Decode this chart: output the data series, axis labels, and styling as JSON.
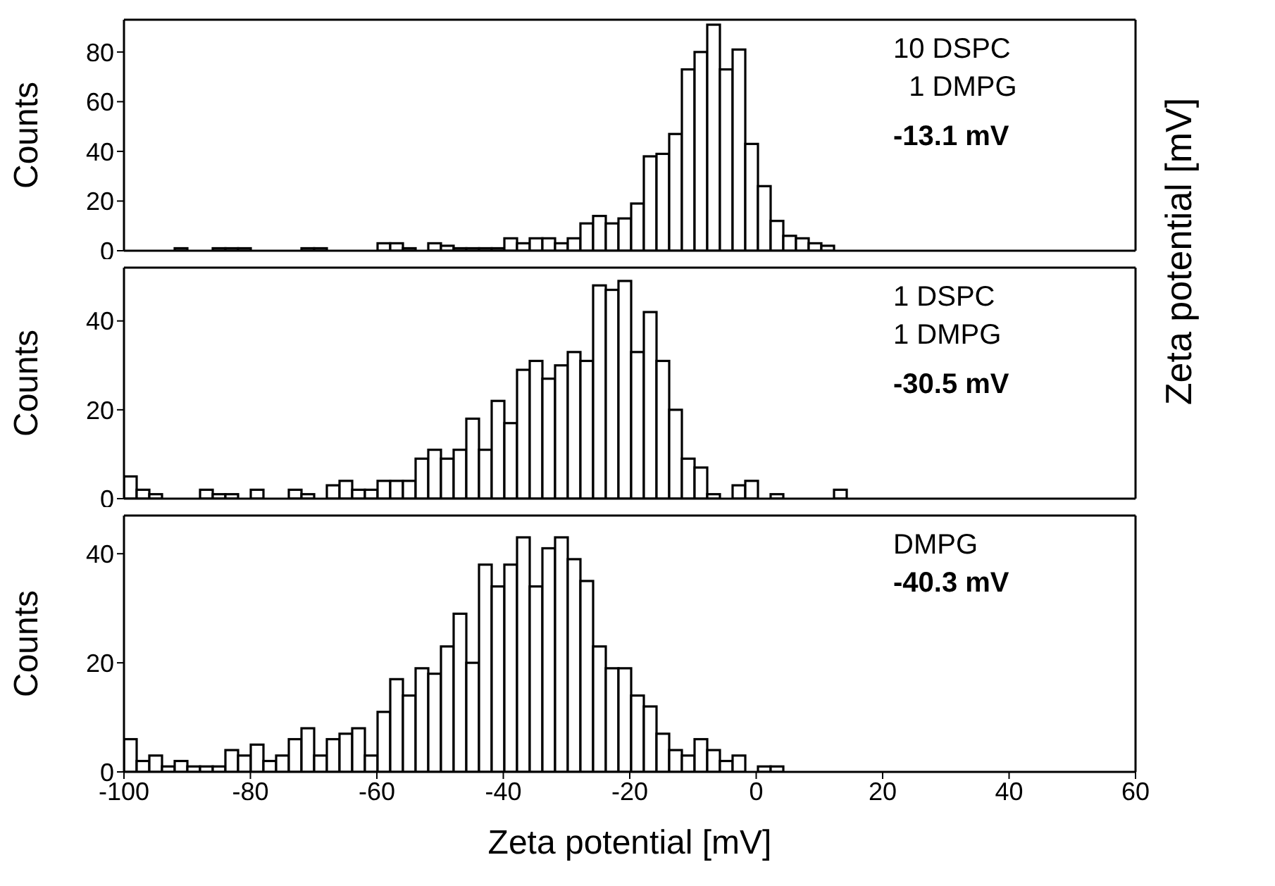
{
  "chart_data": [
    {
      "type": "histogram",
      "ylabel": "Counts",
      "y2label": "Zeta potential [mV]",
      "annotations": [
        "10 DSPC",
        "  1 DMPG",
        "-13.1 mV"
      ],
      "bins": [
        -100,
        -98,
        -96,
        -94,
        -92,
        -90,
        -88,
        -86,
        -84,
        -82,
        -80,
        -78,
        -76,
        -74,
        -72,
        -70,
        -68,
        -66,
        -64,
        -62,
        -60,
        -58,
        -56,
        -54,
        -52,
        -50,
        -48,
        -46,
        -44,
        -42,
        -40,
        -38,
        -36,
        -34,
        -32,
        -30,
        -28,
        -26,
        -24,
        -22,
        -20,
        -18,
        -16,
        -14,
        -12,
        -10,
        -8,
        -6,
        -4,
        -2,
        0,
        2,
        4,
        6,
        8,
        10,
        12
      ],
      "values": [
        0,
        0,
        0,
        0,
        1,
        0,
        0,
        1,
        1,
        1,
        0,
        0,
        0,
        0,
        1,
        1,
        0,
        0,
        0,
        0,
        3,
        3,
        1,
        0,
        3,
        2,
        1,
        1,
        1,
        1,
        5,
        3,
        5,
        5,
        3,
        5,
        11,
        14,
        11,
        13,
        19,
        38,
        39,
        47,
        73,
        80,
        91,
        73,
        81,
        43,
        26,
        12,
        6,
        5,
        3,
        2
      ],
      "color": "#ffffff",
      "xlim": [
        -100,
        60
      ],
      "xticks": [
        -100,
        -80,
        -60,
        -40,
        -20,
        0,
        20,
        40,
        60
      ],
      "ylim": [
        0,
        93
      ],
      "yticks": [
        0,
        20,
        40,
        60,
        80
      ],
      "tick_labels": "y"
    },
    {
      "type": "histogram",
      "ylabel": "Counts",
      "annotations": [
        "1 DSPC",
        "1 DMPG",
        "-30.5 mV"
      ],
      "bins": [
        -100,
        -98,
        -96,
        -94,
        -92,
        -90,
        -88,
        -86,
        -84,
        -82,
        -80,
        -78,
        -76,
        -74,
        -72,
        -70,
        -68,
        -66,
        -64,
        -62,
        -60,
        -58,
        -56,
        -54,
        -52,
        -50,
        -48,
        -46,
        -44,
        -42,
        -40,
        -38,
        -36,
        -34,
        -32,
        -30,
        -28,
        -26,
        -24,
        -22,
        -20,
        -18,
        -16,
        -14,
        -12,
        -10,
        -8,
        -6,
        -4,
        -2,
        0,
        2,
        4,
        6,
        8,
        10,
        12,
        14
      ],
      "values": [
        5,
        2,
        1,
        0,
        0,
        0,
        2,
        1,
        1,
        0,
        2,
        0,
        0,
        2,
        1,
        0,
        3,
        4,
        2,
        2,
        4,
        4,
        4,
        9,
        11,
        9,
        11,
        18,
        11,
        22,
        17,
        29,
        31,
        27,
        30,
        33,
        31,
        48,
        47,
        49,
        33,
        42,
        31,
        20,
        9,
        7,
        1,
        0,
        3,
        4,
        0,
        1,
        0,
        0,
        0,
        0,
        2
      ],
      "color": "#ffffff",
      "xlim": [
        -100,
        60
      ],
      "xticks": [
        -100,
        -80,
        -60,
        -40,
        -20,
        0,
        20,
        40,
        60
      ],
      "ylim": [
        0,
        52
      ],
      "yticks": [
        0,
        20,
        40
      ],
      "tick_labels": "y"
    },
    {
      "type": "histogram",
      "ylabel": "Counts",
      "xlabel": "Zeta potential [mV]",
      "annotations": [
        "DMPG",
        "-40.3 mV"
      ],
      "bins": [
        -100,
        -98,
        -96,
        -94,
        -92,
        -90,
        -88,
        -86,
        -84,
        -82,
        -80,
        -78,
        -76,
        -74,
        -72,
        -70,
        -68,
        -66,
        -64,
        -62,
        -60,
        -58,
        -56,
        -54,
        -52,
        -50,
        -48,
        -46,
        -44,
        -42,
        -40,
        -38,
        -36,
        -34,
        -32,
        -30,
        -28,
        -26,
        -24,
        -22,
        -20,
        -18,
        -16,
        -14,
        -12,
        -10,
        -8,
        -6,
        -4,
        -2,
        0,
        2,
        4
      ],
      "values": [
        6,
        2,
        3,
        1,
        2,
        1,
        1,
        1,
        4,
        3,
        5,
        2,
        3,
        6,
        8,
        3,
        6,
        7,
        8,
        3,
        11,
        17,
        14,
        19,
        18,
        23,
        29,
        20,
        38,
        34,
        38,
        43,
        34,
        41,
        43,
        39,
        35,
        23,
        19,
        19,
        14,
        12,
        7,
        4,
        3,
        6,
        4,
        2,
        3,
        0,
        1,
        1
      ],
      "color": "#ffffff",
      "xlim": [
        -100,
        60
      ],
      "xticks": [
        -100,
        -80,
        -60,
        -40,
        -20,
        0,
        20,
        40,
        60
      ],
      "ylim": [
        0,
        47
      ],
      "yticks": [
        0,
        20,
        40
      ]
    }
  ]
}
